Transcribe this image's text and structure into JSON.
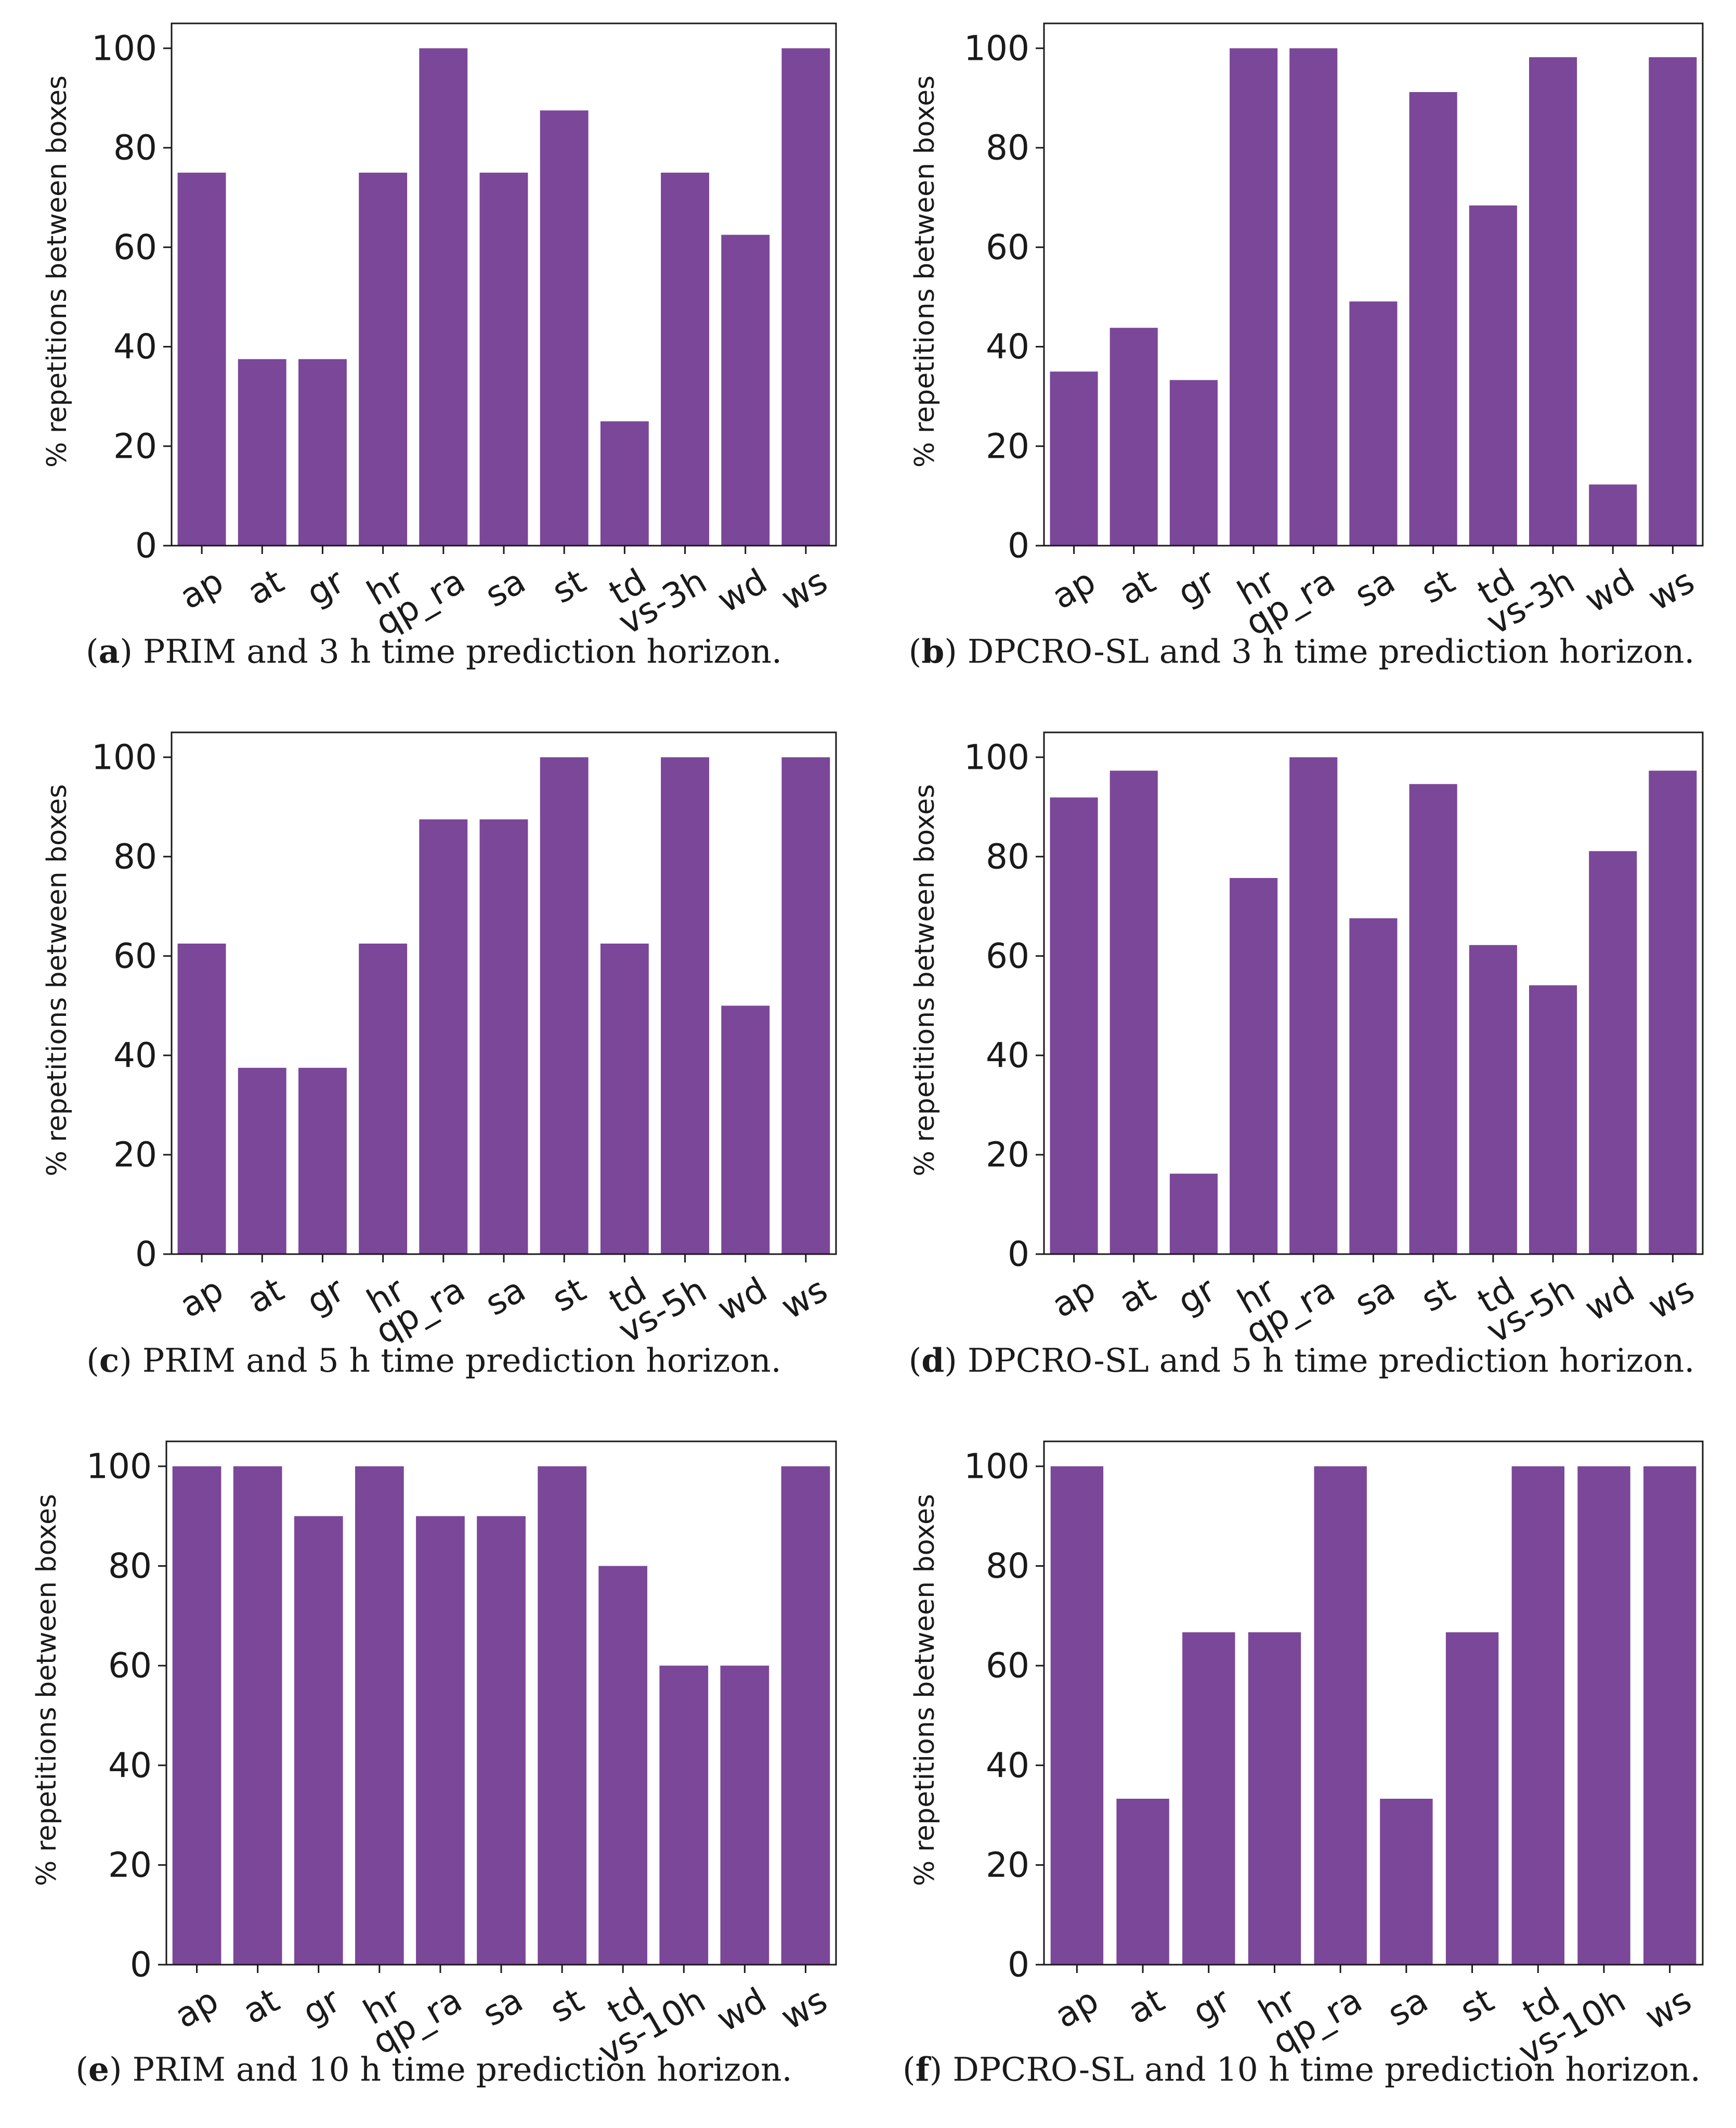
{
  "chart_data": [
    {
      "type": "bar",
      "panel_letter": "a",
      "caption_text": " PRIM and 3 h time prediction horizon.",
      "categories": [
        "ap",
        "at",
        "gr",
        "hr",
        "qp_ra",
        "sa",
        "st",
        "td",
        "vs-3h",
        "wd",
        "ws"
      ],
      "values": [
        75,
        37.5,
        37.5,
        75,
        100,
        75,
        87.5,
        25,
        75,
        62.5,
        100
      ],
      "ylabel": "% repetitions between boxes",
      "xlabel": "",
      "ylim": [
        0,
        105
      ],
      "yticks": [
        0,
        20,
        40,
        60,
        80,
        100
      ],
      "grid": false,
      "color": "#7b4799"
    },
    {
      "type": "bar",
      "panel_letter": "b",
      "caption_text": " DPCRO-SL and 3 h time prediction horizon.",
      "categories": [
        "ap",
        "at",
        "gr",
        "hr",
        "qp_ra",
        "sa",
        "st",
        "td",
        "vs-3h",
        "wd",
        "ws"
      ],
      "values": [
        35,
        43.8,
        33.3,
        100,
        100,
        49.1,
        91.2,
        68.4,
        98.2,
        12.3,
        98.2
      ],
      "ylabel": "% repetitions between boxes",
      "xlabel": "",
      "ylim": [
        0,
        105
      ],
      "yticks": [
        0,
        20,
        40,
        60,
        80,
        100
      ],
      "grid": false,
      "color": "#7b4799"
    },
    {
      "type": "bar",
      "panel_letter": "c",
      "caption_text": " PRIM and 5 h time prediction horizon.",
      "categories": [
        "ap",
        "at",
        "gr",
        "hr",
        "qp_ra",
        "sa",
        "st",
        "td",
        "vs-5h",
        "wd",
        "ws"
      ],
      "values": [
        62.5,
        37.5,
        37.5,
        62.5,
        87.5,
        87.5,
        100,
        62.5,
        100,
        50,
        100
      ],
      "ylabel": "% repetitions between boxes",
      "xlabel": "",
      "ylim": [
        0,
        105
      ],
      "yticks": [
        0,
        20,
        40,
        60,
        80,
        100
      ],
      "grid": false,
      "color": "#7b4799"
    },
    {
      "type": "bar",
      "panel_letter": "d",
      "caption_text": " DPCRO-SL and 5 h time prediction horizon.",
      "categories": [
        "ap",
        "at",
        "gr",
        "hr",
        "qp_ra",
        "sa",
        "st",
        "td",
        "vs-5h",
        "wd",
        "ws"
      ],
      "values": [
        91.9,
        97.3,
        16.2,
        75.7,
        100,
        67.6,
        94.6,
        62.2,
        54.1,
        81.1,
        97.3
      ],
      "ylabel": "% repetitions between boxes",
      "xlabel": "",
      "ylim": [
        0,
        105
      ],
      "yticks": [
        0,
        20,
        40,
        60,
        80,
        100
      ],
      "grid": false,
      "color": "#7b4799"
    },
    {
      "type": "bar",
      "panel_letter": "e",
      "caption_text": " PRIM and 10 h time prediction horizon.",
      "categories": [
        "ap",
        "at",
        "gr",
        "hr",
        "qp_ra",
        "sa",
        "st",
        "td",
        "vs-10h",
        "wd",
        "ws"
      ],
      "values": [
        100,
        100,
        90,
        100,
        90,
        90,
        100,
        80,
        60,
        60,
        100
      ],
      "ylabel": "% repetitions between boxes",
      "xlabel": "",
      "ylim": [
        0,
        105
      ],
      "yticks": [
        0,
        20,
        40,
        60,
        80,
        100
      ],
      "grid": false,
      "color": "#7b4799"
    },
    {
      "type": "bar",
      "panel_letter": "f",
      "caption_text": " DPCRO-SL and 10 h time prediction horizon.",
      "categories": [
        "ap",
        "at",
        "gr",
        "hr",
        "qp_ra",
        "sa",
        "st",
        "td",
        "vs-10h",
        "ws"
      ],
      "values": [
        100,
        33.3,
        66.7,
        66.7,
        100,
        33.3,
        66.7,
        100,
        100,
        100
      ],
      "ylabel": "% repetitions between boxes",
      "xlabel": "",
      "ylim": [
        0,
        105
      ],
      "yticks": [
        0,
        20,
        40,
        60,
        80,
        100
      ],
      "grid": false,
      "color": "#7b4799"
    }
  ]
}
